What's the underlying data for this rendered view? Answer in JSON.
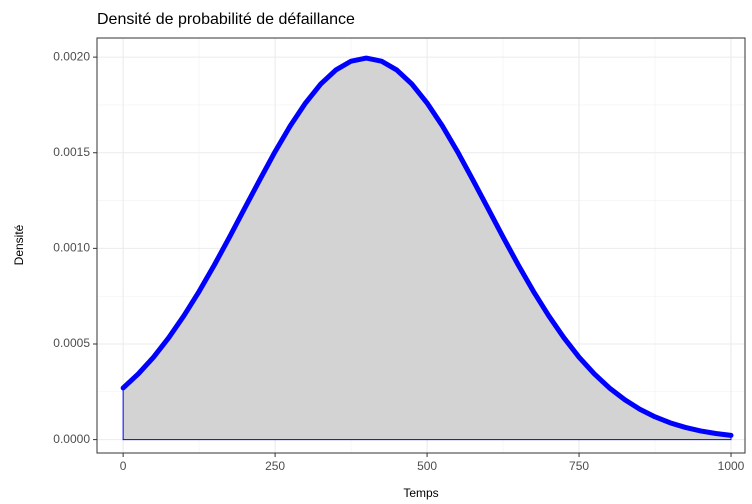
{
  "chart_data": {
    "type": "area",
    "title": "Densité de probabilité de défaillance",
    "x_label": "Temps",
    "y_label": "Densité",
    "x": [
      0,
      25,
      50,
      75,
      100,
      125,
      150,
      175,
      200,
      225,
      250,
      275,
      300,
      325,
      350,
      375,
      400,
      425,
      450,
      475,
      500,
      525,
      550,
      575,
      600,
      625,
      650,
      675,
      700,
      725,
      750,
      775,
      800,
      825,
      850,
      875,
      900,
      925,
      950,
      975,
      1000
    ],
    "values": [
      0.00027,
      0.000344,
      0.000431,
      0.000533,
      0.000648,
      0.000775,
      0.000913,
      0.001059,
      0.00121,
      0.00136,
      0.001506,
      0.001641,
      0.00176,
      0.001859,
      0.001933,
      0.001979,
      0.001995,
      0.001979,
      0.001933,
      0.001859,
      0.00176,
      0.001641,
      0.001506,
      0.00136,
      0.00121,
      0.001059,
      0.000913,
      0.000775,
      0.000648,
      0.000533,
      0.000431,
      0.000344,
      0.00027,
      0.000209,
      0.000159,
      0.000119,
      8.76e-05,
      6.36e-05,
      4.55e-05,
      3.2e-05,
      2.22e-05
    ],
    "color": "#0000ff",
    "fill": "#d3d3d3",
    "xlim": [
      -43,
      1023
    ],
    "xticks": [
      0,
      250,
      500,
      750,
      1000
    ],
    "ylim": [
      -7e-05,
      0.0021
    ],
    "yticks": [
      {
        "value": 0,
        "label": "0.0000"
      },
      {
        "value": 0.0005,
        "label": "0.0005"
      },
      {
        "value": 0.001,
        "label": "0.0010"
      },
      {
        "value": 0.0015,
        "label": "0.0015"
      },
      {
        "value": 0.002,
        "label": "0.0020"
      }
    ],
    "grid": true
  }
}
